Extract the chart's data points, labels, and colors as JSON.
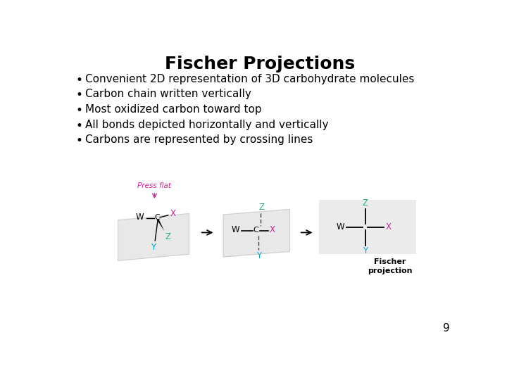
{
  "title": "Fischer Projections",
  "title_fontsize": 18,
  "title_fontweight": "bold",
  "bullet_points": [
    "Convenient 2D representation of 3D carbohydrate molecules",
    "Carbon chain written vertically",
    "Most oxidized carbon toward top",
    "All bonds depicted horizontally and vertically",
    "Carbons are represented by crossing lines"
  ],
  "bullet_fontsize": 11,
  "background_color": "#ffffff",
  "text_color": "#000000",
  "pink_color": "#cc2299",
  "teal_color": "#2aaa88",
  "cyan_color": "#00aacc",
  "page_number": "9",
  "plane_color": "#e8e8e8",
  "plane_edge": "#cccccc",
  "panel3_bg": "#ebebeb"
}
